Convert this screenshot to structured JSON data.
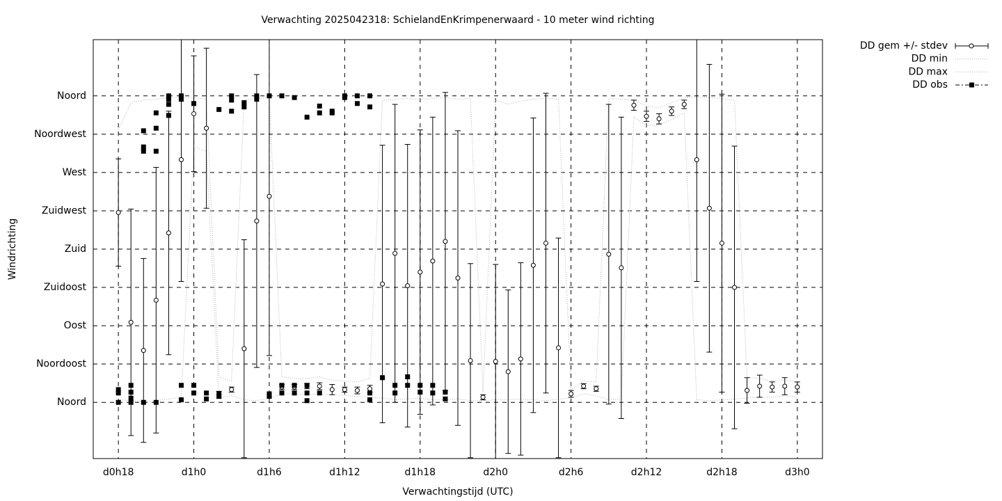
{
  "chart_data": {
    "type": "line",
    "title": "Verwachting 2025042318: SchielandEnKrimpenerwaard - 10 meter wind richting",
    "x_label": "Verwachtingstijd (UTC)",
    "y_label": "Windrichting",
    "xlim": [
      16,
      74
    ],
    "ylim": [
      -66,
      426
    ],
    "xticks": [
      {
        "value": 18,
        "label": "d0h18"
      },
      {
        "value": 24,
        "label": "d1h0"
      },
      {
        "value": 30,
        "label": "d1h6"
      },
      {
        "value": 36,
        "label": "d1h12"
      },
      {
        "value": 42,
        "label": "d1h18"
      },
      {
        "value": 48,
        "label": "d2h0"
      },
      {
        "value": 54,
        "label": "d2h6"
      },
      {
        "value": 60,
        "label": "d2h12"
      },
      {
        "value": 66,
        "label": "d2h18"
      },
      {
        "value": 72,
        "label": "d3h0"
      }
    ],
    "yticks": [
      {
        "value": 0,
        "label": "Noord"
      },
      {
        "value": 45,
        "label": "Noordoost"
      },
      {
        "value": 90,
        "label": "Oost"
      },
      {
        "value": 135,
        "label": "Zuidoost"
      },
      {
        "value": 180,
        "label": "Zuid"
      },
      {
        "value": 225,
        "label": "Zuidwest"
      },
      {
        "value": 270,
        "label": "West"
      },
      {
        "value": 315,
        "label": "Noordwest"
      },
      {
        "value": 360,
        "label": "Noord"
      }
    ],
    "grid": true,
    "legend": "outside-top-right",
    "x": [
      18,
      19,
      20,
      21,
      22,
      23,
      24,
      25,
      26,
      27,
      28,
      29,
      30,
      31,
      32,
      33,
      34,
      35,
      36,
      37,
      38,
      39,
      40,
      41,
      42,
      43,
      44,
      45,
      46,
      47,
      48,
      49,
      50,
      51,
      52,
      53,
      54,
      55,
      56,
      57,
      58,
      59,
      60,
      61,
      62,
      63,
      64,
      65,
      66,
      67,
      68,
      69,
      70,
      71,
      72
    ],
    "series": [
      {
        "name": "DD gem +/- stdev",
        "style": "errorbars",
        "color": "#000000",
        "values": [
          223,
          94,
          61,
          120,
          199,
          285,
          339,
          322,
          9,
          15,
          63,
          213,
          242,
          18,
          18,
          19,
          19,
          15,
          15,
          14,
          16,
          139,
          175,
          137,
          153,
          166,
          189,
          146,
          49,
          6,
          48,
          36,
          51,
          161,
          187,
          64,
          10,
          19,
          16,
          174,
          158,
          349,
          336,
          333,
          342,
          350,
          285,
          228,
          187,
          135,
          14,
          19,
          18,
          19,
          18
        ],
        "errors": [
          63,
          133,
          108,
          156,
          143,
          143,
          68,
          94,
          4,
          3,
          128,
          172,
          187,
          3,
          3,
          3,
          4,
          6,
          3,
          4,
          4,
          163,
          175,
          166,
          167,
          169,
          175,
          173,
          114,
          3,
          114,
          96,
          113,
          173,
          176,
          129,
          4,
          3,
          3,
          176,
          177,
          6,
          6,
          6,
          5,
          5,
          143,
          169,
          175,
          166,
          15,
          13,
          6,
          10,
          6
        ]
      },
      {
        "name": "DD min",
        "style": "dotted",
        "color": "#b0b0b0",
        "values": [
          3,
          2,
          1,
          2,
          4,
          6,
          300,
          295,
          5,
          8,
          3,
          2,
          5,
          10,
          10,
          9,
          10,
          9,
          8,
          7,
          6,
          5,
          3,
          4,
          5,
          3,
          3,
          4,
          2,
          2,
          3,
          3,
          4,
          3,
          2,
          4,
          5,
          10,
          8,
          3,
          4,
          335,
          325,
          326,
          332,
          340,
          3,
          2,
          3,
          4,
          5,
          6,
          6,
          8,
          6
        ]
      },
      {
        "name": "DD max",
        "style": "dotted",
        "color": "#b0b0b0",
        "values": [
          320,
          352,
          355,
          356,
          358,
          358,
          358,
          356,
          30,
          25,
          355,
          357,
          358,
          30,
          28,
          28,
          30,
          26,
          25,
          24,
          28,
          355,
          356,
          357,
          356,
          357,
          358,
          356,
          357,
          12,
          355,
          350,
          354,
          356,
          357,
          356,
          15,
          25,
          24,
          357,
          356,
          355,
          348,
          346,
          352,
          358,
          359,
          358,
          357,
          355,
          30,
          28,
          25,
          26,
          24
        ]
      },
      {
        "name": "DD obs",
        "style": "points",
        "color": "#000000",
        "x": [
          18,
          18,
          18,
          19,
          19,
          19,
          19,
          20,
          20,
          20,
          20,
          21,
          21,
          21,
          21,
          22,
          22,
          22,
          22,
          23,
          23,
          23,
          23,
          24,
          24,
          24,
          25,
          25,
          26,
          26,
          26,
          27,
          27,
          27,
          28,
          28,
          29,
          29,
          30,
          30,
          30,
          31,
          31,
          31,
          32,
          32,
          32,
          33,
          33,
          33,
          33,
          34,
          34,
          34,
          35,
          35,
          36,
          36,
          37,
          37,
          38,
          38,
          38,
          38,
          39,
          40,
          40,
          41,
          41,
          42,
          42,
          43,
          43,
          44,
          44
        ],
        "values": [
          15,
          11,
          0,
          20,
          12,
          5,
          0,
          319,
          300,
          295,
          0,
          340,
          322,
          295,
          0,
          360,
          356,
          350,
          337,
          360,
          356,
          20,
          3,
          351,
          20,
          11,
          11,
          4,
          344,
          10,
          7,
          360,
          355,
          342,
          352,
          347,
          360,
          356,
          360,
          10,
          7,
          360,
          20,
          11,
          358,
          20,
          11,
          335,
          20,
          11,
          2,
          348,
          340,
          11,
          342,
          340,
          360,
          358,
          360,
          351,
          360,
          347,
          11,
          3,
          29,
          20,
          11,
          30,
          20,
          20,
          12,
          20,
          11,
          12,
          4
        ]
      }
    ]
  }
}
